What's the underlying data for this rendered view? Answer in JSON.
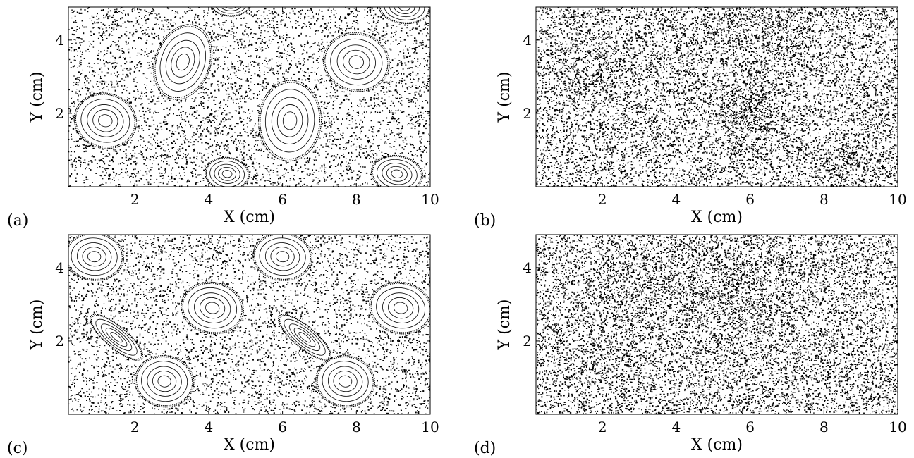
{
  "chart_data": [
    {
      "type": "scatter",
      "panel_label": "(a)",
      "xlabel": "X  (cm)",
      "ylabel": "Y  (cm)",
      "xlim": [
        0.2,
        10
      ],
      "ylim": [
        0,
        4.9
      ],
      "xticks": [
        2,
        4,
        6,
        8,
        10
      ],
      "yticks": [
        2,
        4
      ],
      "grid": false,
      "point_color": "#000000",
      "regularity": 0.75,
      "islands": [
        {
          "x": 1.2,
          "y": 1.8,
          "rx": 0.85,
          "ry": 0.75,
          "tilt": 0.25
        },
        {
          "x": 3.3,
          "y": 3.4,
          "rx": 0.75,
          "ry": 1.05,
          "tilt": 0.35
        },
        {
          "x": 6.2,
          "y": 1.8,
          "rx": 0.85,
          "ry": 1.1,
          "tilt": 0.05
        },
        {
          "x": 8.0,
          "y": 3.4,
          "rx": 0.9,
          "ry": 0.8,
          "tilt": 0.2
        },
        {
          "x": 4.5,
          "y": 0.35,
          "rx": 0.6,
          "ry": 0.45,
          "tilt": 0.1
        },
        {
          "x": 9.1,
          "y": 0.35,
          "rx": 0.7,
          "ry": 0.5,
          "tilt": 0.15
        },
        {
          "x": 4.6,
          "y": 5.0,
          "rx": 0.55,
          "ry": 0.35,
          "tilt": 0.0
        },
        {
          "x": 9.3,
          "y": 4.9,
          "rx": 0.7,
          "ry": 0.45,
          "tilt": 0.1
        }
      ]
    },
    {
      "type": "scatter",
      "panel_label": "(b)",
      "xlabel": "X  (cm)",
      "ylabel": "Y  (cm)",
      "xlim": [
        0.2,
        10
      ],
      "ylim": [
        0,
        4.9
      ],
      "xticks": [
        2,
        4,
        6,
        8,
        10
      ],
      "yticks": [
        2,
        4
      ],
      "grid": false,
      "point_color": "#000000",
      "regularity": 0.0,
      "islands": []
    },
    {
      "type": "scatter",
      "panel_label": "(c)",
      "xlabel": "X  (cm)",
      "ylabel": "Y  (cm)",
      "xlim": [
        0.2,
        10
      ],
      "ylim": [
        0,
        4.9
      ],
      "xticks": [
        2,
        4,
        6,
        8,
        10
      ],
      "yticks": [
        2,
        4
      ],
      "grid": false,
      "point_color": "#000000",
      "regularity": 0.7,
      "islands": [
        {
          "x": 0.9,
          "y": 4.3,
          "rx": 0.8,
          "ry": 0.65,
          "tilt": 0.1
        },
        {
          "x": 6.0,
          "y": 4.3,
          "rx": 0.8,
          "ry": 0.65,
          "tilt": 0.1
        },
        {
          "x": 4.1,
          "y": 2.9,
          "rx": 0.85,
          "ry": 0.7,
          "tilt": 0.2
        },
        {
          "x": 9.2,
          "y": 2.9,
          "rx": 0.85,
          "ry": 0.7,
          "tilt": 0.2
        },
        {
          "x": 2.8,
          "y": 0.9,
          "rx": 0.8,
          "ry": 0.7,
          "tilt": 0.15
        },
        {
          "x": 7.7,
          "y": 0.9,
          "rx": 0.8,
          "ry": 0.7,
          "tilt": 0.15
        },
        {
          "x": 1.5,
          "y": 2.1,
          "rx": 0.9,
          "ry": 0.3,
          "tilt": 0.7
        },
        {
          "x": 6.6,
          "y": 2.1,
          "rx": 0.9,
          "ry": 0.3,
          "tilt": 0.7
        }
      ]
    },
    {
      "type": "scatter",
      "panel_label": "(d)",
      "xlabel": "X  (cm)",
      "ylabel": "Y  (cm)",
      "xlim": [
        0.2,
        10
      ],
      "ylim": [
        0,
        4.9
      ],
      "xticks": [
        2,
        4,
        6,
        8,
        10
      ],
      "yticks": [
        2,
        4
      ],
      "grid": false,
      "point_color": "#000000",
      "regularity": 0.0,
      "islands": []
    }
  ]
}
